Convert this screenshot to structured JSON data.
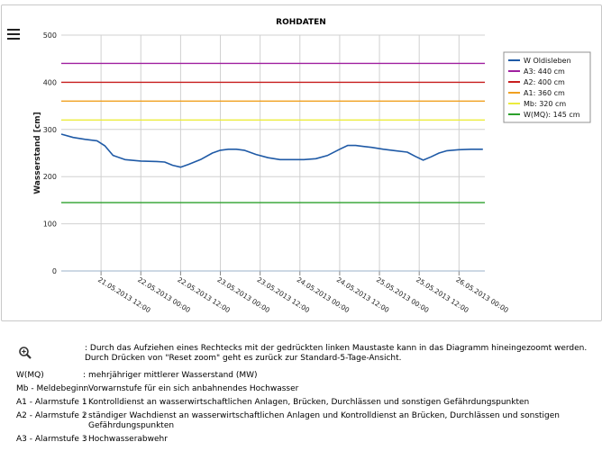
{
  "chart_data": {
    "type": "line",
    "title": "ROHDATEN",
    "xlabel": "",
    "ylabel": "Wasserstand [cm]",
    "ylim": [
      0,
      500
    ],
    "yticks": [
      0,
      100,
      200,
      300,
      400,
      500
    ],
    "xlim": [
      0,
      10.65
    ],
    "xticks": [
      {
        "pos": 1,
        "label": "21.05.2013 12:00"
      },
      {
        "pos": 2,
        "label": "22.05.2013 00:00"
      },
      {
        "pos": 3,
        "label": "22.05.2013 12:00"
      },
      {
        "pos": 4,
        "label": "23.05.2013 00:00"
      },
      {
        "pos": 5,
        "label": "23.05.2013 12:00"
      },
      {
        "pos": 6,
        "label": "24.05.2013 00:00"
      },
      {
        "pos": 7,
        "label": "24.05.2013 12:00"
      },
      {
        "pos": 8,
        "label": "25.05.2013 00:00"
      },
      {
        "pos": 9,
        "label": "25.05.2013 12:00"
      },
      {
        "pos": 10,
        "label": "26.05.2013 00:00"
      }
    ],
    "series": [
      {
        "name": "W Oldisleben",
        "color": "#1f5aa6",
        "x": [
          0,
          0.3,
          0.6,
          0.9,
          1.1,
          1.3,
          1.6,
          2.0,
          2.4,
          2.6,
          2.8,
          3.0,
          3.2,
          3.5,
          3.8,
          4.0,
          4.2,
          4.4,
          4.6,
          4.9,
          5.2,
          5.5,
          5.8,
          6.1,
          6.4,
          6.7,
          7.0,
          7.2,
          7.4,
          7.6,
          7.8,
          8.1,
          8.4,
          8.7,
          8.9,
          9.1,
          9.3,
          9.5,
          9.7,
          10.0,
          10.3,
          10.6
        ],
        "values": [
          290,
          283,
          279,
          276,
          265,
          245,
          236,
          233,
          232,
          231,
          224,
          220,
          226,
          236,
          250,
          256,
          258,
          258,
          256,
          247,
          240,
          236,
          236,
          236,
          238,
          245,
          258,
          266,
          266,
          264,
          262,
          258,
          255,
          252,
          243,
          235,
          242,
          250,
          255,
          257,
          258,
          258
        ]
      },
      {
        "name": "A3: 440 cm",
        "color": "#a020a0",
        "constant": 440
      },
      {
        "name": "A2: 400 cm",
        "color": "#c81e1e",
        "constant": 400
      },
      {
        "name": "A1: 360 cm",
        "color": "#f0a020",
        "constant": 360
      },
      {
        "name": "Mb: 320 cm",
        "color": "#ecec3c",
        "constant": 320
      },
      {
        "name": "W(MQ): 145 cm",
        "color": "#2ca02c",
        "constant": 145
      }
    ],
    "legend_position": "right",
    "grid": true
  },
  "notes": {
    "zoom_icon": "zoom-in-icon",
    "zoom_text": ": Durch das Aufziehen eines Rechtecks mit der gedrückten linken Maustaste kann in das Diagramm hineingezoomt werden. Durch Drücken von \"Reset zoom\" geht es zurück zur Standard-5-Tage-Ansicht.",
    "items": [
      {
        "key": "W(MQ)",
        "sep": ":",
        "text": "mehrjähriger mittlerer Wasserstand (MW)"
      },
      {
        "key": "Mb - Meldebeginn",
        "sep": ":",
        "text": "Vorwarnstufe für ein sich anbahnendes Hochwasser"
      },
      {
        "key": "A1 - Alarmstufe 1",
        "sep": ":",
        "text": "Kontrolldienst an wasserwirtschaftlichen Anlagen, Brücken, Durchlässen und sonstigen Gefährdungspunkten"
      },
      {
        "key": "A2 - Alarmstufe 2",
        "sep": ":",
        "text": "ständiger Wachdienst an wasserwirtschaftlichen Anlagen und Kontrolldienst an Brücken, Durchlässen und sonstigen Gefährdungspunkten"
      },
      {
        "key": "A3 - Alarmstufe 3",
        "sep": ":",
        "text": "Hochwasserabwehr"
      }
    ]
  }
}
